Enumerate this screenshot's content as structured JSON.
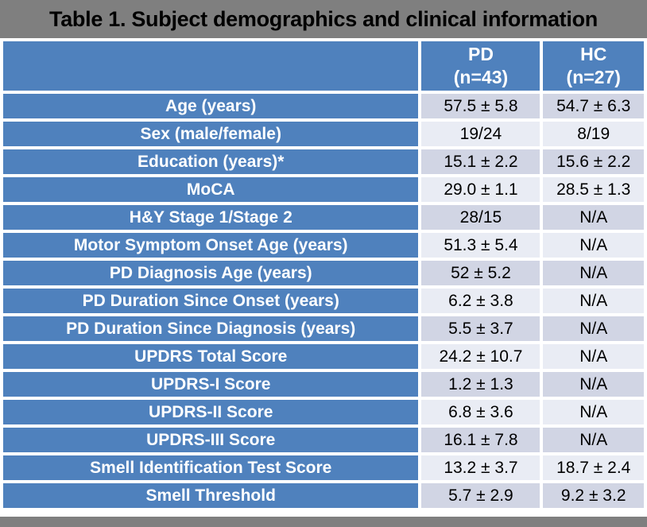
{
  "title": "Table 1. Subject demographics and clinical information",
  "colors": {
    "accent_blue": "#4f81bd",
    "bar_gray": "#7f7f7f",
    "band_dark": "#d1d5e4",
    "band_light": "#e9ecf4",
    "label_text": "#ffffff",
    "value_text": "#000000"
  },
  "chart_data": {
    "type": "table",
    "title": "Table 1. Subject demographics and clinical information",
    "columns": [
      {
        "name": "PD",
        "n": "(n=43)"
      },
      {
        "name": "HC",
        "n": "(n=27)"
      }
    ],
    "rows": [
      {
        "label": "Age (years)",
        "pd": "57.5 ± 5.8",
        "hc": "54.7 ± 6.3"
      },
      {
        "label": "Sex (male/female)",
        "pd": "19/24",
        "hc": "8/19"
      },
      {
        "label": "Education (years)*",
        "pd": "15.1 ± 2.2",
        "hc": "15.6 ± 2.2"
      },
      {
        "label": "MoCA",
        "pd": "29.0 ± 1.1",
        "hc": "28.5 ± 1.3"
      },
      {
        "label": "H&Y Stage 1/Stage 2",
        "pd": "28/15",
        "hc": "N/A"
      },
      {
        "label": "Motor Symptom Onset Age (years)",
        "pd": "51.3 ± 5.4",
        "hc": "N/A"
      },
      {
        "label": "PD Diagnosis Age (years)",
        "pd": "52 ± 5.2",
        "hc": "N/A"
      },
      {
        "label": "PD Duration Since Onset (years)",
        "pd": "6.2 ± 3.8",
        "hc": "N/A"
      },
      {
        "label": "PD Duration Since Diagnosis (years)",
        "pd": "5.5 ± 3.7",
        "hc": "N/A"
      },
      {
        "label": "UPDRS Total Score",
        "pd": "24.2 ± 10.7",
        "hc": "N/A"
      },
      {
        "label": "UPDRS-I Score",
        "pd": "1.2 ± 1.3",
        "hc": "N/A"
      },
      {
        "label": "UPDRS-II Score",
        "pd": "6.8 ± 3.6",
        "hc": "N/A"
      },
      {
        "label": "UPDRS-III Score",
        "pd": "16.1 ± 7.8",
        "hc": "N/A"
      },
      {
        "label": "Smell Identification Test Score",
        "pd": "13.2 ± 3.7",
        "hc": "18.7 ± 2.4"
      },
      {
        "label": "Smell Threshold",
        "pd": "5.7 ± 2.9",
        "hc": "9.2 ± 3.2"
      }
    ]
  }
}
